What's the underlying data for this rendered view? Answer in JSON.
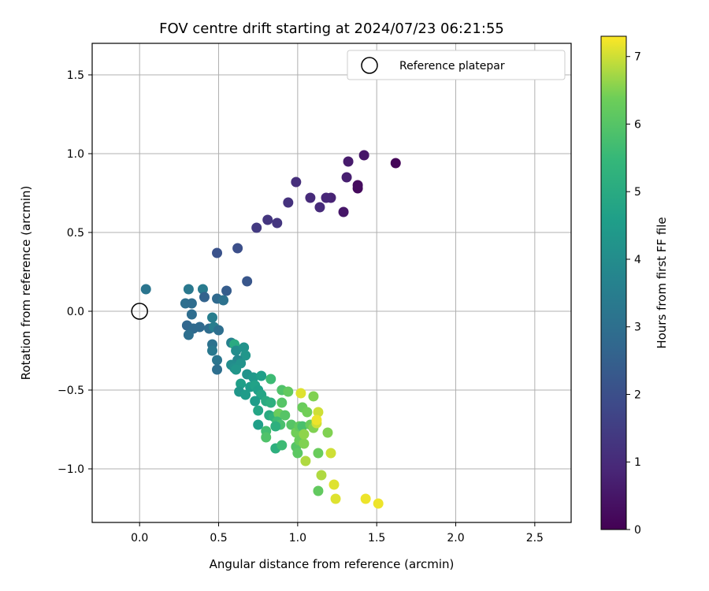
{
  "chart_data": {
    "type": "scatter",
    "title": "FOV centre drift starting at 2024/07/23 06:21:55",
    "xlabel": "Angular distance from reference (arcmin)",
    "ylabel": "Rotation from reference (arcmin)",
    "xlim": [
      -0.3,
      2.73
    ],
    "ylim": [
      -1.34,
      1.7
    ],
    "xticks": [
      0.0,
      0.5,
      1.0,
      1.5,
      2.0,
      2.5
    ],
    "xtick_labels": [
      "0.0",
      "0.5",
      "1.0",
      "1.5",
      "2.0",
      "2.5"
    ],
    "yticks": [
      -1.0,
      -0.5,
      0.0,
      0.5,
      1.0,
      1.5
    ],
    "ytick_labels": [
      "−1.0",
      "−0.5",
      "0.0",
      "0.5",
      "1.0",
      "1.5"
    ],
    "grid": true,
    "legend": {
      "position": "top-right",
      "entries": [
        "Reference platepar"
      ]
    },
    "reference": {
      "x": 0.0,
      "y": 0.0
    },
    "colorbar": {
      "label": "Hours from first FF file",
      "range": [
        0,
        7.3
      ],
      "ticks": [
        0,
        1,
        2,
        3,
        4,
        5,
        6,
        7
      ],
      "tick_labels": [
        "0",
        "1",
        "2",
        "3",
        "4",
        "5",
        "6",
        "7"
      ],
      "colormap": "viridis"
    },
    "points": [
      {
        "x": 1.62,
        "y": 0.94,
        "c": 0.1
      },
      {
        "x": 1.38,
        "y": 0.78,
        "c": 0.2
      },
      {
        "x": 1.38,
        "y": 0.8,
        "c": 0.25
      },
      {
        "x": 1.42,
        "y": 0.99,
        "c": 0.5
      },
      {
        "x": 1.32,
        "y": 0.95,
        "c": 0.6
      },
      {
        "x": 1.31,
        "y": 0.85,
        "c": 0.7
      },
      {
        "x": 1.29,
        "y": 0.63,
        "c": 0.5
      },
      {
        "x": 1.21,
        "y": 0.72,
        "c": 0.8
      },
      {
        "x": 1.18,
        "y": 0.72,
        "c": 0.9
      },
      {
        "x": 1.14,
        "y": 0.66,
        "c": 1.0
      },
      {
        "x": 1.08,
        "y": 0.72,
        "c": 1.0
      },
      {
        "x": 0.99,
        "y": 0.82,
        "c": 1.1
      },
      {
        "x": 0.94,
        "y": 0.69,
        "c": 1.2
      },
      {
        "x": 0.87,
        "y": 0.56,
        "c": 1.3
      },
      {
        "x": 0.81,
        "y": 0.58,
        "c": 1.3
      },
      {
        "x": 0.74,
        "y": 0.53,
        "c": 1.4
      },
      {
        "x": 0.62,
        "y": 0.4,
        "c": 2.0
      },
      {
        "x": 0.49,
        "y": 0.37,
        "c": 2.1
      },
      {
        "x": 0.68,
        "y": 0.19,
        "c": 2.2
      },
      {
        "x": 0.55,
        "y": 0.13,
        "c": 2.4
      },
      {
        "x": 0.04,
        "y": 0.14,
        "c": 3.2
      },
      {
        "x": 0.31,
        "y": 0.14,
        "c": 3.3
      },
      {
        "x": 0.4,
        "y": 0.14,
        "c": 3.4
      },
      {
        "x": 0.41,
        "y": 0.09,
        "c": 2.6
      },
      {
        "x": 0.29,
        "y": 0.05,
        "c": 3.0
      },
      {
        "x": 0.33,
        "y": 0.05,
        "c": 2.9
      },
      {
        "x": 0.49,
        "y": 0.08,
        "c": 2.8
      },
      {
        "x": 0.53,
        "y": 0.07,
        "c": 3.1
      },
      {
        "x": 0.33,
        "y": -0.02,
        "c": 2.9
      },
      {
        "x": 0.3,
        "y": -0.09,
        "c": 2.7
      },
      {
        "x": 0.34,
        "y": -0.11,
        "c": 2.8
      },
      {
        "x": 0.38,
        "y": -0.1,
        "c": 2.8
      },
      {
        "x": 0.44,
        "y": -0.11,
        "c": 2.9
      },
      {
        "x": 0.47,
        "y": -0.1,
        "c": 3.5
      },
      {
        "x": 0.5,
        "y": -0.12,
        "c": 3.0
      },
      {
        "x": 0.31,
        "y": -0.15,
        "c": 3.0
      },
      {
        "x": 0.46,
        "y": -0.04,
        "c": 3.5
      },
      {
        "x": 0.46,
        "y": -0.21,
        "c": 3.1
      },
      {
        "x": 0.46,
        "y": -0.25,
        "c": 3.3
      },
      {
        "x": 0.49,
        "y": -0.31,
        "c": 3.2
      },
      {
        "x": 0.49,
        "y": -0.37,
        "c": 3.0
      },
      {
        "x": 0.58,
        "y": -0.2,
        "c": 3.6
      },
      {
        "x": 0.6,
        "y": -0.21,
        "c": 5.0
      },
      {
        "x": 0.61,
        "y": -0.25,
        "c": 4.0
      },
      {
        "x": 0.66,
        "y": -0.23,
        "c": 4.2
      },
      {
        "x": 0.67,
        "y": -0.28,
        "c": 4.3
      },
      {
        "x": 0.62,
        "y": -0.31,
        "c": 3.8
      },
      {
        "x": 0.58,
        "y": -0.34,
        "c": 4.0
      },
      {
        "x": 0.6,
        "y": -0.36,
        "c": 4.1
      },
      {
        "x": 0.64,
        "y": -0.33,
        "c": 4.2
      },
      {
        "x": 0.61,
        "y": -0.37,
        "c": 4.3
      },
      {
        "x": 0.68,
        "y": -0.4,
        "c": 4.2
      },
      {
        "x": 0.72,
        "y": -0.42,
        "c": 4.4
      },
      {
        "x": 0.77,
        "y": -0.41,
        "c": 4.6
      },
      {
        "x": 0.64,
        "y": -0.46,
        "c": 4.6
      },
      {
        "x": 0.7,
        "y": -0.48,
        "c": 4.5
      },
      {
        "x": 0.73,
        "y": -0.47,
        "c": 4.7
      },
      {
        "x": 0.63,
        "y": -0.51,
        "c": 4.3
      },
      {
        "x": 0.67,
        "y": -0.53,
        "c": 4.5
      },
      {
        "x": 0.75,
        "y": -0.5,
        "c": 4.6
      },
      {
        "x": 0.77,
        "y": -0.53,
        "c": 4.8
      },
      {
        "x": 0.73,
        "y": -0.57,
        "c": 4.5
      },
      {
        "x": 0.8,
        "y": -0.57,
        "c": 5.0
      },
      {
        "x": 0.83,
        "y": -0.43,
        "c": 5.6
      },
      {
        "x": 0.83,
        "y": -0.58,
        "c": 5.2
      },
      {
        "x": 0.75,
        "y": -0.63,
        "c": 4.8
      },
      {
        "x": 0.82,
        "y": -0.66,
        "c": 5.0
      },
      {
        "x": 0.85,
        "y": -0.67,
        "c": 5.3
      },
      {
        "x": 0.75,
        "y": -0.72,
        "c": 4.6
      },
      {
        "x": 0.8,
        "y": -0.76,
        "c": 5.7
      },
      {
        "x": 0.8,
        "y": -0.8,
        "c": 5.9
      },
      {
        "x": 0.88,
        "y": -0.65,
        "c": 6.3
      },
      {
        "x": 0.9,
        "y": -0.5,
        "c": 5.9
      },
      {
        "x": 0.9,
        "y": -0.58,
        "c": 6.0
      },
      {
        "x": 0.94,
        "y": -0.51,
        "c": 6.2
      },
      {
        "x": 0.92,
        "y": -0.66,
        "c": 6.0
      },
      {
        "x": 0.87,
        "y": -0.7,
        "c": 5.6
      },
      {
        "x": 0.89,
        "y": -0.72,
        "c": 5.8
      },
      {
        "x": 0.86,
        "y": -0.73,
        "c": 5.2
      },
      {
        "x": 0.96,
        "y": -0.72,
        "c": 6.0
      },
      {
        "x": 0.99,
        "y": -0.77,
        "c": 6.4
      },
      {
        "x": 1.01,
        "y": -0.73,
        "c": 6.2
      },
      {
        "x": 1.03,
        "y": -0.73,
        "c": 5.8
      },
      {
        "x": 0.86,
        "y": -0.87,
        "c": 5.2
      },
      {
        "x": 0.9,
        "y": -0.85,
        "c": 5.6
      },
      {
        "x": 0.99,
        "y": -0.86,
        "c": 6.0
      },
      {
        "x": 1.0,
        "y": -0.9,
        "c": 6.1
      },
      {
        "x": 1.01,
        "y": -0.82,
        "c": 6.3
      },
      {
        "x": 1.04,
        "y": -0.84,
        "c": 6.5
      },
      {
        "x": 1.04,
        "y": -0.78,
        "c": 6.6
      },
      {
        "x": 1.03,
        "y": -0.61,
        "c": 6.3
      },
      {
        "x": 1.06,
        "y": -0.64,
        "c": 6.4
      },
      {
        "x": 1.02,
        "y": -0.52,
        "c": 7.1
      },
      {
        "x": 1.1,
        "y": -0.54,
        "c": 6.5
      },
      {
        "x": 1.08,
        "y": -0.72,
        "c": 6.3
      },
      {
        "x": 1.1,
        "y": -0.74,
        "c": 6.5
      },
      {
        "x": 1.12,
        "y": -0.71,
        "c": 7.0
      },
      {
        "x": 1.13,
        "y": -0.64,
        "c": 7.0
      },
      {
        "x": 1.12,
        "y": -0.69,
        "c": 7.2
      },
      {
        "x": 1.05,
        "y": -0.95,
        "c": 6.8
      },
      {
        "x": 1.13,
        "y": -0.9,
        "c": 6.3
      },
      {
        "x": 1.21,
        "y": -0.9,
        "c": 7.0
      },
      {
        "x": 1.19,
        "y": -0.77,
        "c": 6.5
      },
      {
        "x": 1.15,
        "y": -1.04,
        "c": 6.8
      },
      {
        "x": 1.23,
        "y": -1.1,
        "c": 7.1
      },
      {
        "x": 1.13,
        "y": -1.14,
        "c": 6.2
      },
      {
        "x": 1.24,
        "y": -1.19,
        "c": 7.1
      },
      {
        "x": 1.43,
        "y": -1.19,
        "c": 7.2
      },
      {
        "x": 1.51,
        "y": -1.22,
        "c": 7.2
      }
    ]
  }
}
